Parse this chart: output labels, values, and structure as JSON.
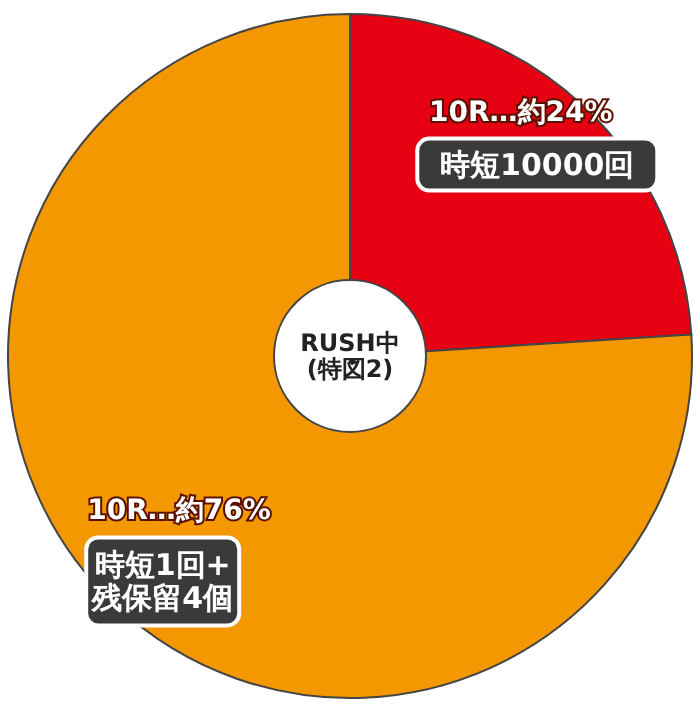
{
  "chart_data": {
    "type": "donut",
    "categories": [
      "10R…約24%",
      "10R…約76%"
    ],
    "values": [
      24,
      76
    ],
    "colors": [
      "#e60012",
      "#f39800"
    ],
    "title": "RUSH中\n(特図2)",
    "annotations": [
      "時短10000回",
      "時短1回+\n残保留4個"
    ]
  }
}
